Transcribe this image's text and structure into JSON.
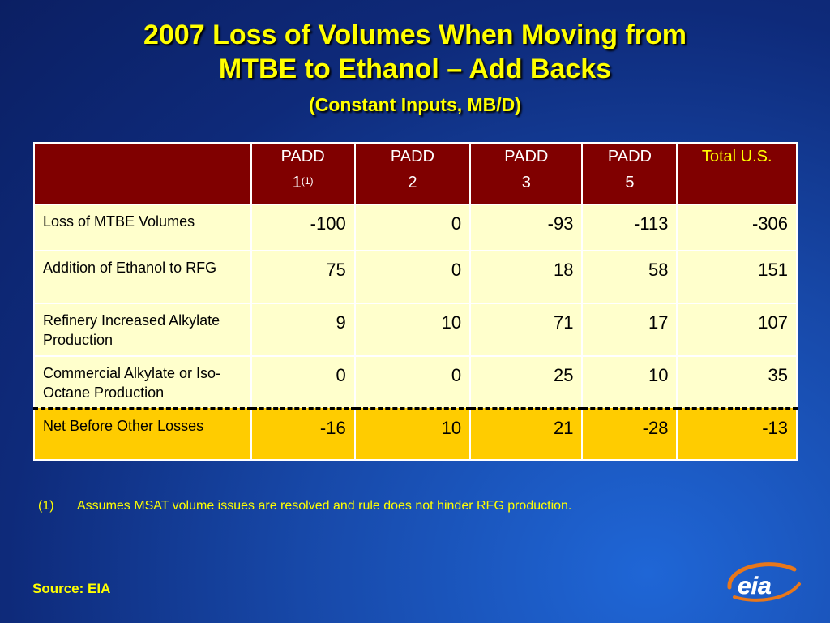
{
  "slide": {
    "title_line1": "2007 Loss of Volumes When Moving from",
    "title_line2": "MTBE to Ethanol – Add Backs",
    "subtitle": "(Constant Inputs, MB/D)"
  },
  "table": {
    "headers": [
      {
        "line1": "",
        "line2": ""
      },
      {
        "line1": "PADD",
        "line2": "1",
        "sup": "(1)"
      },
      {
        "line1": "PADD",
        "line2": "2"
      },
      {
        "line1": "PADD",
        "line2": "3"
      },
      {
        "line1": "PADD",
        "line2": "5"
      },
      {
        "line1": "Total U.S.",
        "line2": ""
      }
    ],
    "rows": [
      {
        "label": "Loss of MTBE Volumes",
        "values": [
          "-100",
          "0",
          "-93",
          "-113",
          "-306"
        ]
      },
      {
        "label": "Addition of Ethanol to RFG",
        "values": [
          "75",
          "0",
          "18",
          "58",
          "151"
        ]
      },
      {
        "label": "Refinery Increased Alkylate Production",
        "values": [
          "9",
          "10",
          "71",
          "17",
          "107"
        ]
      },
      {
        "label": "Commercial Alkylate or Iso-Octane Production",
        "values": [
          "0",
          "0",
          "25",
          "10",
          "35"
        ]
      },
      {
        "label": "Net Before Other Losses",
        "values": [
          "-16",
          "10",
          "21",
          "-28",
          "-13"
        ]
      }
    ]
  },
  "footnote": {
    "number": "(1)",
    "text": "Assumes MSAT volume issues are resolved and rule does not  hinder RFG production."
  },
  "source": "Source: EIA",
  "logo": {
    "text": "eia"
  },
  "colors": {
    "title": "#ffff00",
    "header_bg": "#800000",
    "row_bg": "#ffffcc",
    "net_row_bg": "#ffcc00",
    "logo_accent": "#e8771a"
  }
}
